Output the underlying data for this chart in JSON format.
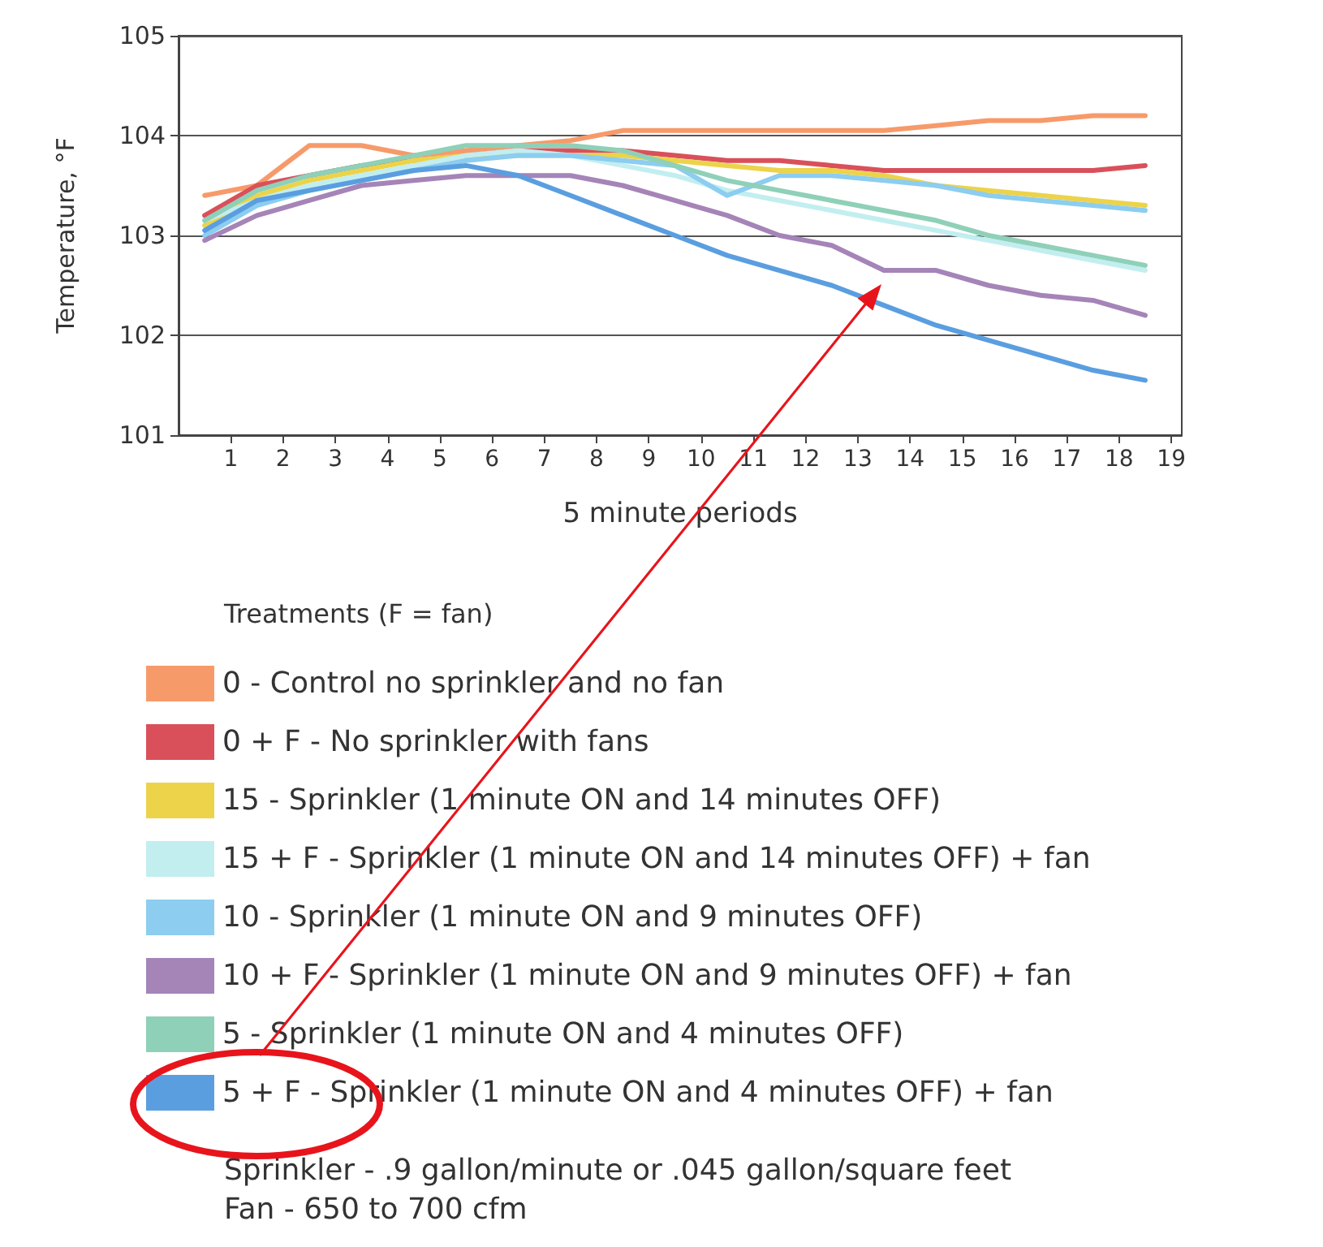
{
  "chart_data": {
    "type": "line",
    "x": [
      0.5,
      1.5,
      2.5,
      3.5,
      4.5,
      5.5,
      6.5,
      7.5,
      8.5,
      9.5,
      10.5,
      11.5,
      12.5,
      13.5,
      14.5,
      15.5,
      16.5,
      17.5,
      18.5
    ],
    "xlabel": "5 minute periods",
    "ylabel": "Temperature, °F",
    "legend_title": "Treatments (F = fan)",
    "xlim": [
      0,
      19.2
    ],
    "xticks": [
      1,
      2,
      3,
      4,
      5,
      6,
      7,
      8,
      9,
      10,
      11,
      12,
      13,
      14,
      15,
      16,
      17,
      18,
      19
    ],
    "ylim": [
      101,
      105
    ],
    "yticks": [
      101,
      102,
      103,
      104,
      105
    ],
    "grid": "y",
    "legend": "bottom",
    "marker": "none",
    "line_style": "solid",
    "series": [
      {
        "name": "0 - Control no sprinkler and no fan",
        "color": "#f79a6a",
        "values": [
          103.4,
          103.5,
          103.9,
          103.9,
          103.8,
          103.85,
          103.9,
          103.95,
          104.05,
          104.05,
          104.05,
          104.05,
          104.05,
          104.05,
          104.1,
          104.15,
          104.15,
          104.2,
          104.2
        ]
      },
      {
        "name": "0 + F - No sprinkler with fans",
        "color": "#d9505a",
        "values": [
          103.2,
          103.5,
          103.6,
          103.7,
          103.75,
          103.8,
          103.85,
          103.85,
          103.85,
          103.8,
          103.75,
          103.75,
          103.7,
          103.65,
          103.65,
          103.65,
          103.65,
          103.65,
          103.7
        ]
      },
      {
        "name": "15 - Sprinkler (1 minute ON and 14 minutes OFF)",
        "color": "#ecd34a",
        "values": [
          103.1,
          103.4,
          103.55,
          103.65,
          103.75,
          103.8,
          103.8,
          103.8,
          103.8,
          103.75,
          103.7,
          103.65,
          103.65,
          103.6,
          103.5,
          103.45,
          103.4,
          103.35,
          103.3
        ]
      },
      {
        "name": "15 + F - Sprinkler (1 minute ON and 14 minutes OFF) + fan",
        "color": "#c2eef0",
        "values": [
          103.15,
          103.35,
          103.5,
          103.6,
          103.7,
          103.8,
          103.85,
          103.8,
          103.7,
          103.6,
          103.45,
          103.35,
          103.25,
          103.15,
          103.05,
          102.95,
          102.85,
          102.75,
          102.65
        ]
      },
      {
        "name": "10 - Sprinkler (1 minute ON and 9 minutes OFF)",
        "color": "#8ccdf0",
        "values": [
          103.0,
          103.3,
          103.45,
          103.55,
          103.65,
          103.75,
          103.8,
          103.8,
          103.75,
          103.7,
          103.4,
          103.6,
          103.6,
          103.55,
          103.5,
          103.4,
          103.35,
          103.3,
          103.25
        ]
      },
      {
        "name": "10 + F - Sprinkler (1 minute ON and 9 minutes OFF) + fan",
        "color": "#a584b8",
        "values": [
          102.95,
          103.2,
          103.35,
          103.5,
          103.55,
          103.6,
          103.6,
          103.6,
          103.5,
          103.35,
          103.2,
          103.0,
          102.9,
          102.65,
          102.65,
          102.5,
          102.4,
          102.35,
          102.2
        ]
      },
      {
        "name": "5 - Sprinkler (1 minute ON and 4 minutes OFF)",
        "color": "#8fd0b8",
        "values": [
          103.15,
          103.45,
          103.6,
          103.7,
          103.8,
          103.9,
          103.9,
          103.9,
          103.85,
          103.7,
          103.55,
          103.45,
          103.35,
          103.25,
          103.15,
          103.0,
          102.9,
          102.8,
          102.7
        ]
      },
      {
        "name": "5 + F - Sprinkler (1 minute ON and 4 minutes OFF) + fan",
        "color": "#5a9ee0",
        "values": [
          103.05,
          103.35,
          103.45,
          103.55,
          103.65,
          103.7,
          103.6,
          103.4,
          103.2,
          103.0,
          102.8,
          102.65,
          102.5,
          102.3,
          102.1,
          101.95,
          101.8,
          101.65,
          101.55
        ]
      }
    ],
    "annotations": [
      "Sprinkler - .9 gallon/minute or .045 gallon/square feet",
      "Fan - 650 to 700 cfm"
    ]
  }
}
